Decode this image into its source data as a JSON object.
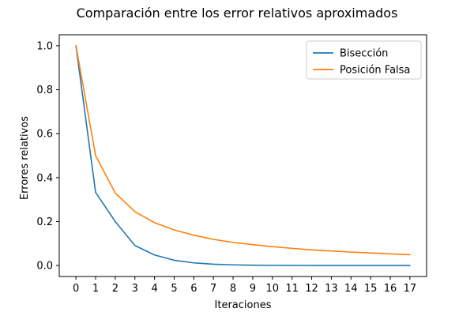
{
  "chart_data": {
    "type": "line",
    "title": "Comparación entre los error relativos aproximados",
    "xlabel": "Iteraciones",
    "ylabel": "Errores relativos",
    "x": [
      0,
      1,
      2,
      3,
      4,
      5,
      6,
      7,
      8,
      9,
      10,
      11,
      12,
      13,
      14,
      15,
      16,
      17
    ],
    "xlim": [
      -0.85,
      17.85
    ],
    "ylim": [
      -0.05,
      1.05
    ],
    "yticks": [
      0.0,
      0.2,
      0.4,
      0.6,
      0.8,
      1.0
    ],
    "ytick_labels": [
      "0.0",
      "0.2",
      "0.4",
      "0.6",
      "0.8",
      "1.0"
    ],
    "xtick_labels": [
      "0",
      "1",
      "2",
      "3",
      "4",
      "5",
      "6",
      "7",
      "8",
      "9",
      "10",
      "11",
      "12",
      "13",
      "14",
      "15",
      "16",
      "17"
    ],
    "grid": false,
    "legend_position": "top-right",
    "series": [
      {
        "name": "Bisección",
        "color": "#1f77b4",
        "values": [
          1.0,
          0.333,
          0.2,
          0.091,
          0.048,
          0.024,
          0.012,
          0.006,
          0.003,
          0.0015,
          0.0008,
          0.0004,
          0.0002,
          0.0001,
          5e-05,
          3e-05,
          1e-05,
          1e-05
        ]
      },
      {
        "name": "Posición Falsa",
        "color": "#ff7f0e",
        "values": [
          1.0,
          0.5,
          0.33,
          0.245,
          0.195,
          0.162,
          0.138,
          0.119,
          0.105,
          0.095,
          0.086,
          0.078,
          0.071,
          0.066,
          0.061,
          0.057,
          0.053,
          0.049
        ]
      }
    ]
  }
}
